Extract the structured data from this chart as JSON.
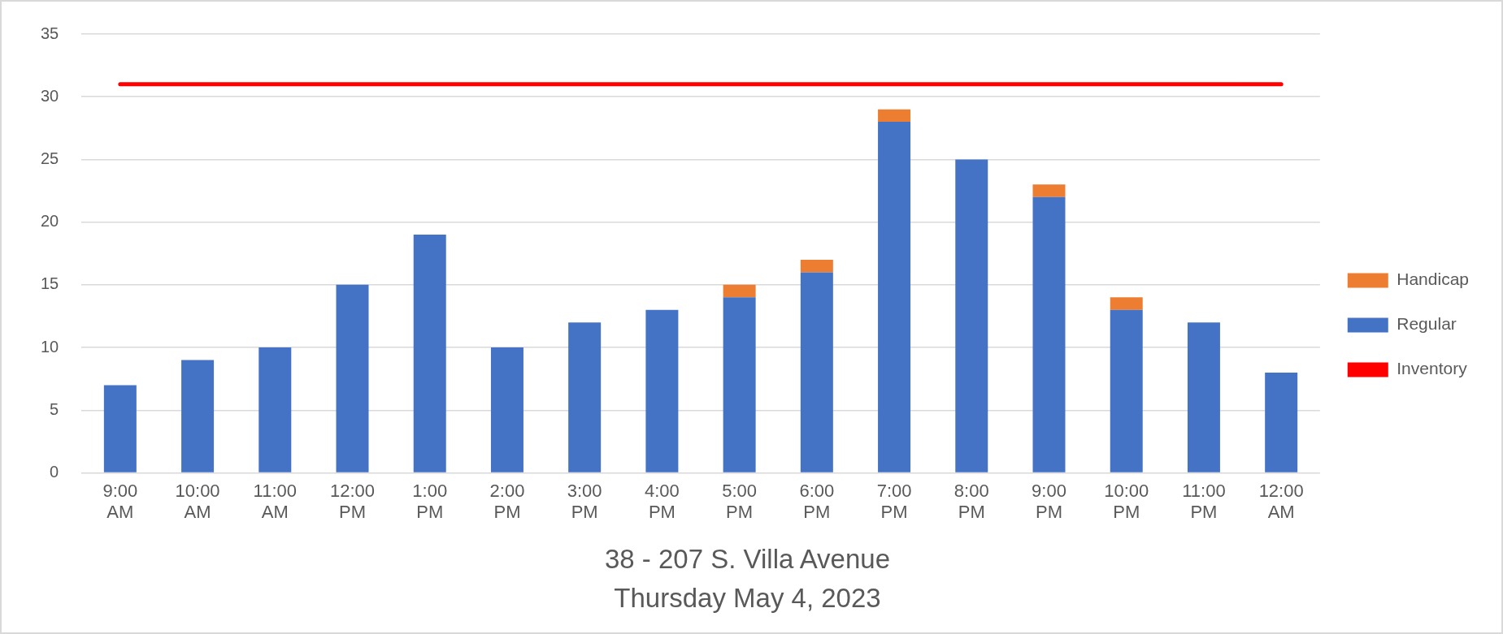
{
  "chart_data": {
    "type": "bar",
    "title": "38 - 207 S. Villa Avenue",
    "subtitle": "Thursday May 4, 2023",
    "categories": [
      "9:00 AM",
      "10:00 AM",
      "11:00 AM",
      "12:00 PM",
      "1:00 PM",
      "2:00 PM",
      "3:00 PM",
      "4:00 PM",
      "5:00 PM",
      "6:00 PM",
      "7:00 PM",
      "8:00 PM",
      "9:00 PM",
      "10:00 PM",
      "11:00 PM",
      "12:00 AM"
    ],
    "stacked": true,
    "series": [
      {
        "name": "Regular",
        "color": "#4472c4",
        "values": [
          7,
          9,
          10,
          15,
          19,
          10,
          12,
          13,
          14,
          16,
          28,
          25,
          22,
          13,
          12,
          8
        ]
      },
      {
        "name": "Handicap",
        "color": "#ed7d31",
        "values": [
          0,
          0,
          0,
          0,
          0,
          0,
          0,
          0,
          1,
          1,
          1,
          0,
          1,
          1,
          0,
          0
        ]
      },
      {
        "name": "Inventory",
        "type": "line",
        "color": "#ff0000",
        "values": [
          31,
          31,
          31,
          31,
          31,
          31,
          31,
          31,
          31,
          31,
          31,
          31,
          31,
          31,
          31,
          31
        ]
      }
    ],
    "ylim": [
      0,
      35
    ],
    "yticks": [
      0,
      5,
      10,
      15,
      20,
      25,
      30,
      35
    ],
    "grid": "y",
    "legend": "right",
    "marker": "none"
  }
}
